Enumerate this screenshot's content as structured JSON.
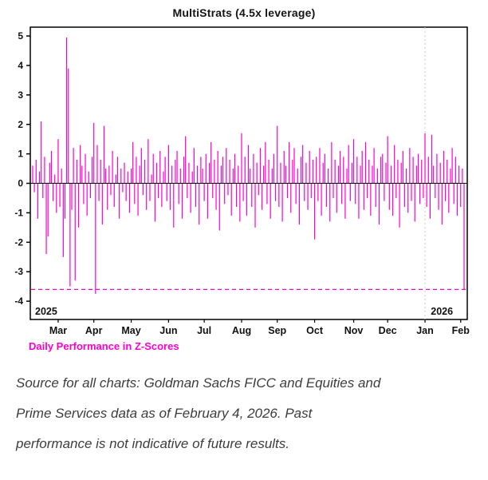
{
  "page": {
    "background": "#ffffff"
  },
  "chart": {
    "title": "MultiStrats (4.5x leverage)",
    "caption": "Daily Performance in Z-Scores",
    "accent_color": "#ff00cc"
  },
  "source": {
    "lines": [
      "Source for all charts: Goldman Sachs FICC and Equities and",
      "Prime Services data as of February 4, 2026. Past",
      "performance is not indicative of future results."
    ]
  },
  "chart_data": {
    "type": "bar",
    "title": "MultiStrats (4.5x leverage)",
    "xlabel": "",
    "ylabel": "Daily Performance in Z-Scores",
    "ylim": [
      -4,
      5
    ],
    "yticks": [
      5,
      4,
      3,
      2,
      1,
      0,
      -1,
      -2,
      -3,
      -4
    ],
    "x_unit": "trading-day",
    "x_range": [
      "Feb 2025",
      "Feb 4, 2026"
    ],
    "bar_color": "#ff00cc",
    "zero_line": true,
    "threshold": -3.6,
    "threshold_style": "dashed",
    "legend": "none",
    "grid": false,
    "month_ticks": [
      {
        "label": "Mar",
        "index": 15
      },
      {
        "label": "Apr",
        "index": 36
      },
      {
        "label": "May",
        "index": 58
      },
      {
        "label": "Jun",
        "index": 80
      },
      {
        "label": "Jul",
        "index": 101
      },
      {
        "label": "Aug",
        "index": 123
      },
      {
        "label": "Sep",
        "index": 144
      },
      {
        "label": "Oct",
        "index": 166
      },
      {
        "label": "Nov",
        "index": 189
      },
      {
        "label": "Dec",
        "index": 209
      },
      {
        "label": "Jan",
        "index": 231
      },
      {
        "label": "Feb",
        "index": 252
      }
    ],
    "year_labels": [
      {
        "label": "2025",
        "index": 0
      },
      {
        "label": "2026",
        "index": 233
      }
    ],
    "year_divider_index": 231,
    "values": [
      0.6,
      -0.3,
      0.8,
      -1.2,
      0.4,
      2.1,
      -0.5,
      0.9,
      -2.4,
      -1.8,
      0.7,
      1.1,
      -0.6,
      0.3,
      -1.0,
      1.5,
      -0.8,
      0.5,
      -2.5,
      -1.2,
      4.95,
      3.9,
      -3.5,
      -0.9,
      1.2,
      -3.3,
      0.8,
      -1.5,
      1.3,
      0.6,
      -0.7,
      1.0,
      -1.1,
      0.4,
      -0.5,
      0.9,
      2.05,
      -3.75,
      1.3,
      -0.6,
      0.8,
      -1.4,
      1.95,
      0.5,
      -0.9,
      0.6,
      -0.4,
      1.1,
      -0.8,
      0.3,
      0.9,
      -1.2,
      0.5,
      -0.3,
      0.7,
      -0.6,
      0.4,
      -1.0,
      0.5,
      1.4,
      -0.7,
      0.9,
      -1.1,
      0.6,
      1.2,
      -0.4,
      0.8,
      -0.9,
      1.5,
      -0.6,
      0.3,
      1.0,
      -1.3,
      0.7,
      -0.5,
      1.1,
      -0.8,
      0.4,
      0.9,
      -0.6,
      1.3,
      -0.9,
      0.6,
      -1.5,
      0.8,
      1.1,
      -0.7,
      0.5,
      -1.2,
      0.9,
      1.6,
      -0.5,
      0.7,
      -1.0,
      0.4,
      1.2,
      -0.8,
      0.6,
      -1.4,
      0.9,
      0.5,
      -0.6,
      1.0,
      -1.2,
      0.7,
      1.4,
      -0.5,
      0.8,
      -0.9,
      1.1,
      -1.6,
      0.6,
      0.9,
      -0.7,
      1.2,
      -0.4,
      0.8,
      -1.1,
      0.5,
      1.0,
      -0.8,
      0.6,
      -1.3,
      1.7,
      -0.6,
      0.9,
      -1.1,
      1.3,
      0.5,
      -0.8,
      1.0,
      -1.5,
      0.7,
      -0.4,
      1.2,
      -0.9,
      0.6,
      1.4,
      -0.7,
      0.8,
      -1.2,
      0.5,
      1.0,
      -0.6,
      1.95,
      -0.8,
      0.7,
      -1.3,
      1.1,
      0.6,
      -0.5,
      1.4,
      -1.0,
      0.8,
      1.2,
      -0.7,
      0.5,
      -1.4,
      0.9,
      1.3,
      -0.6,
      0.7,
      -0.9,
      1.1,
      -0.5,
      0.8,
      -1.9,
      0.9,
      -0.6,
      1.2,
      -1.1,
      0.7,
      1.0,
      -0.8,
      0.5,
      -1.3,
      1.4,
      -0.5,
      0.8,
      -1.0,
      0.6,
      1.1,
      -0.7,
      0.9,
      -1.2,
      0.5,
      1.3,
      -0.6,
      0.7,
      1.5,
      -0.7,
      0.9,
      -1.2,
      0.6,
      1.1,
      -0.9,
      1.4,
      -0.5,
      0.8,
      -1.1,
      0.6,
      1.2,
      -0.8,
      0.5,
      -1.4,
      0.9,
      1.0,
      -0.6,
      0.7,
      1.6,
      -0.9,
      0.6,
      -1.1,
      1.3,
      -0.5,
      0.8,
      -1.5,
      0.7,
      1.1,
      -0.8,
      0.5,
      -1.0,
      1.2,
      -0.6,
      0.9,
      -1.3,
      0.6,
      1.0,
      -0.7,
      0.8,
      -0.5,
      1.7,
      -0.8,
      0.9,
      -1.2,
      1.65,
      0.6,
      -0.5,
      1.0,
      -0.9,
      0.7,
      -1.4,
      1.1,
      -0.6,
      0.8,
      -1.0,
      0.5,
      1.2,
      -0.7,
      0.9,
      -1.1,
      0.6,
      -0.8,
      0.5,
      -3.6
    ]
  }
}
